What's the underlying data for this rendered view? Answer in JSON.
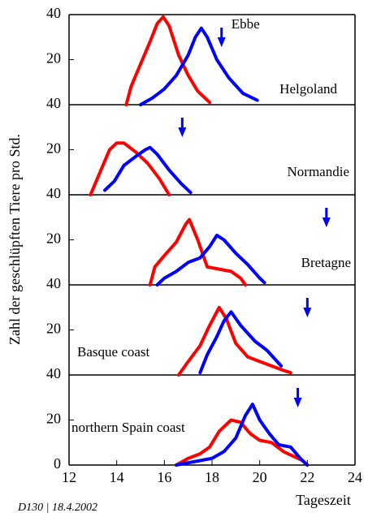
{
  "shared": {
    "ylabel": "Zahl der geschlüpften Tiere pro Std.",
    "xlabel": "Tageszeit",
    "xlim": [
      12,
      24
    ],
    "xticks": [
      12,
      14,
      16,
      18,
      20,
      22,
      24
    ]
  },
  "footer": "D130 | 18.4.2002",
  "chart_data": [
    {
      "type": "line",
      "label": "Helgoland",
      "annotation": "Ebbe",
      "low_tide": 18.4,
      "ylim": [
        0,
        40
      ],
      "yticks": [
        20,
        40
      ],
      "series": [
        {
          "color": "#ff0000",
          "x": [
            14.4,
            14.6,
            15.0,
            15.4,
            15.7,
            15.95,
            16.2,
            16.6,
            17.0,
            17.4,
            17.9
          ],
          "values": [
            0,
            8,
            18,
            28,
            36,
            39,
            35,
            22,
            13,
            6,
            1
          ]
        },
        {
          "color": "#0000ff",
          "x": [
            15.0,
            15.5,
            16.0,
            16.5,
            17.0,
            17.3,
            17.55,
            17.8,
            18.2,
            18.7,
            19.3,
            19.9
          ],
          "values": [
            0,
            3,
            7,
            13,
            22,
            30,
            34,
            30,
            20,
            12,
            5,
            2
          ]
        }
      ]
    },
    {
      "type": "line",
      "label": "Normandie",
      "low_tide": 16.75,
      "ylim": [
        0,
        40
      ],
      "yticks": [
        20,
        40
      ],
      "series": [
        {
          "color": "#ff0000",
          "x": [
            12.9,
            13.3,
            13.7,
            14.0,
            14.3,
            14.8,
            15.3,
            15.8,
            16.2
          ],
          "values": [
            0,
            10,
            20,
            23,
            23,
            19,
            14,
            7,
            0
          ]
        },
        {
          "color": "#0000ff",
          "x": [
            13.5,
            13.9,
            14.3,
            14.8,
            15.2,
            15.4,
            15.7,
            16.2,
            16.7,
            17.1
          ],
          "values": [
            2,
            6,
            13,
            17,
            20,
            21,
            18,
            11,
            5,
            1
          ]
        }
      ]
    },
    {
      "type": "line",
      "label": "Bretagne",
      "low_tide": 22.8,
      "ylim": [
        0,
        40
      ],
      "yticks": [
        20,
        40
      ],
      "series": [
        {
          "color": "#ff0000",
          "x": [
            15.4,
            15.6,
            16.0,
            16.5,
            16.9,
            17.05,
            17.4,
            17.8,
            18.3,
            18.8,
            19.2,
            19.4
          ],
          "values": [
            0,
            8,
            13,
            19,
            27,
            29,
            20,
            8,
            7,
            6,
            3,
            0
          ]
        },
        {
          "color": "#0000ff",
          "x": [
            15.7,
            16.0,
            16.5,
            17.0,
            17.5,
            17.9,
            18.2,
            18.5,
            19.0,
            19.5,
            20.0,
            20.2
          ],
          "values": [
            0,
            3,
            6,
            10,
            12,
            17,
            22,
            20,
            14,
            9,
            3,
            1
          ]
        }
      ]
    },
    {
      "type": "line",
      "label": "Basque coast",
      "low_tide": 22.0,
      "ylim": [
        0,
        40
      ],
      "yticks": [
        20,
        40
      ],
      "series": [
        {
          "color": "#ff0000",
          "x": [
            16.6,
            17.0,
            17.5,
            17.9,
            18.3,
            18.6,
            19.0,
            19.5,
            20.0,
            20.5,
            21.0,
            21.3
          ],
          "values": [
            0,
            6,
            13,
            22,
            30,
            25,
            14,
            8,
            6,
            4,
            2,
            1
          ]
        },
        {
          "color": "#0000ff",
          "x": [
            17.5,
            17.8,
            18.2,
            18.5,
            18.8,
            19.2,
            19.8,
            20.3,
            20.9
          ],
          "values": [
            1,
            9,
            17,
            24,
            28,
            22,
            15,
            11,
            4
          ]
        }
      ]
    },
    {
      "type": "line",
      "label": "northern Spain coast",
      "low_tide": 21.6,
      "ylim": [
        0,
        40
      ],
      "yticks": [
        0,
        20,
        40
      ],
      "series": [
        {
          "color": "#ff0000",
          "x": [
            16.5,
            17.0,
            17.5,
            17.9,
            18.3,
            18.8,
            19.2,
            19.6,
            20.0,
            20.5,
            21.0,
            21.4,
            21.8,
            22.0
          ],
          "values": [
            0,
            3,
            5,
            8,
            15,
            20,
            19,
            14,
            11,
            10,
            6,
            4,
            2,
            0
          ]
        },
        {
          "color": "#0000ff",
          "x": [
            16.5,
            17.0,
            17.5,
            18.0,
            18.5,
            19.0,
            19.4,
            19.7,
            20.0,
            20.4,
            20.8,
            21.3,
            21.7,
            22.0
          ],
          "values": [
            0,
            1,
            2,
            3,
            6,
            12,
            22,
            27,
            20,
            14,
            9,
            8,
            3,
            0
          ]
        }
      ]
    }
  ]
}
